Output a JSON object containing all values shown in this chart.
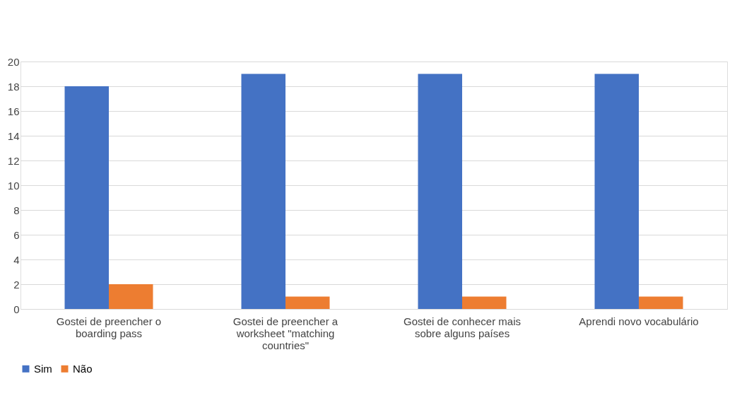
{
  "chart_data": {
    "type": "bar",
    "categories": [
      "Gostei de preencher o boarding pass",
      "Gostei de preencher a worksheet \"matching countries\"",
      "Gostei de conhecer mais sobre alguns países",
      "Aprendi novo vocabulário"
    ],
    "series": [
      {
        "name": "Sim",
        "color": "#4472c4",
        "values": [
          18,
          19,
          19,
          19
        ]
      },
      {
        "name": "Não",
        "color": "#ed7d31",
        "values": [
          2,
          1,
          1,
          1
        ]
      }
    ],
    "ylim": [
      0,
      20
    ],
    "yticks": [
      0,
      2,
      4,
      6,
      8,
      10,
      12,
      14,
      16,
      18,
      20
    ],
    "grid": "y",
    "legend": "bottom"
  }
}
